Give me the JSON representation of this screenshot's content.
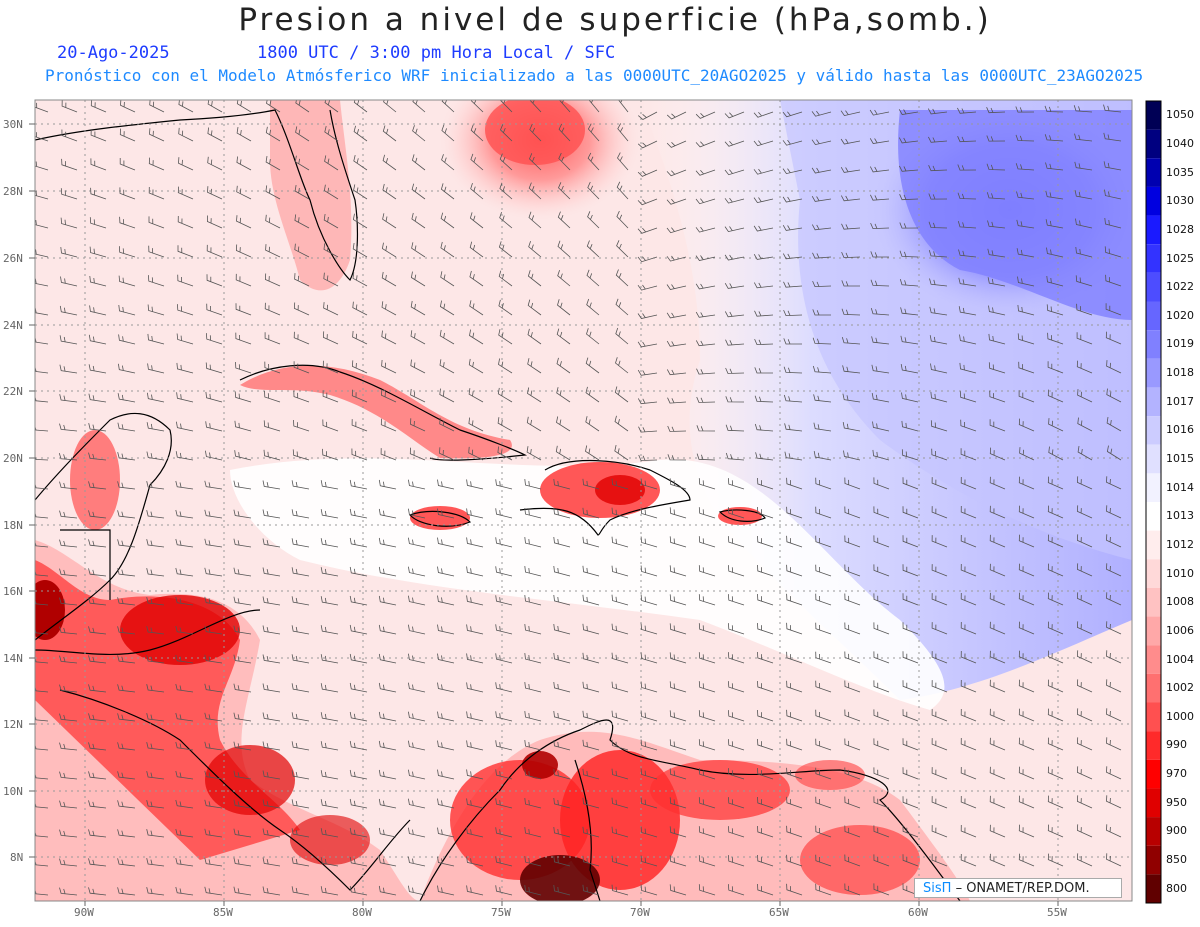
{
  "header": {
    "title": "Presion a nivel de superficie (hPa,somb.)",
    "date": "20-Ago-2025",
    "time_info": "1800 UTC / 3:00 pm Hora Local / SFC",
    "description": "Pronóstico con el Modelo Atmósferico WRF inicializado a las 0000UTC_20AGO2025 y válido hasta las  0000UTC_23AGO2025"
  },
  "lat_labels": [
    "30N",
    "28N",
    "26N",
    "24N",
    "22N",
    "20N",
    "18N",
    "16N",
    "14N",
    "12N",
    "10N",
    "8N"
  ],
  "lon_labels": [
    "90W",
    "85W",
    "80W",
    "75W",
    "70W",
    "65W",
    "60W",
    "55W"
  ],
  "colorbar": {
    "levels": [
      "1050",
      "1040",
      "1035",
      "1030",
      "1028",
      "1025",
      "1022",
      "1020",
      "1019",
      "1018",
      "1017",
      "1016",
      "1015",
      "1014",
      "1013",
      "1012",
      "1010",
      "1008",
      "1006",
      "1004",
      "1002",
      "1000",
      "990",
      "970",
      "950",
      "900",
      "850",
      "800"
    ],
    "colors": [
      "#000055",
      "#000080",
      "#0000b0",
      "#0000e0",
      "#1a1aff",
      "#3333ff",
      "#4d4dff",
      "#6666ff",
      "#8080ff",
      "#9999ff",
      "#b3b3ff",
      "#ccccff",
      "#e0e0ff",
      "#f2f2ff",
      "#ffffff",
      "#ffeded",
      "#ffd9d9",
      "#ffc2c2",
      "#ffa8a8",
      "#ff8c8c",
      "#ff7070",
      "#ff5050",
      "#ff2a2a",
      "#ff0000",
      "#e00000",
      "#b80000",
      "#900000",
      "#600000"
    ]
  },
  "credit": {
    "logo": "SisΠ",
    "text": "– ONAMET/REP.DOM."
  }
}
